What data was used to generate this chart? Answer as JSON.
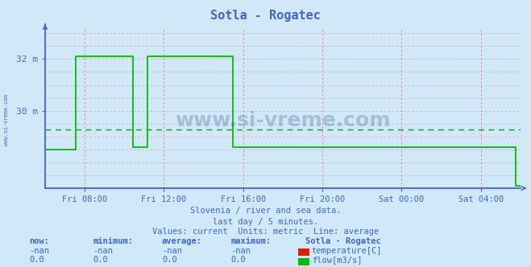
{
  "title": "Sotla - Rogatec",
  "bg_color": "#d0e8f8",
  "plot_bg_color": "#d0e8f8",
  "axis_color": "#4466bb",
  "grid_color_v": "#ee7777",
  "grid_color_h": "#ddaaaa",
  "line_color_flow": "#00bb00",
  "avg_line_color": "#00aa00",
  "ylim": [
    27.0,
    33.2
  ],
  "ytick_vals": [
    30.0,
    32.0
  ],
  "ytick_labels": [
    "30 m",
    "32 m"
  ],
  "xtick_labels": [
    "Fri 08:00",
    "Fri 12:00",
    "Fri 16:00",
    "Fri 20:00",
    "Sat 00:00",
    "Sat 04:00"
  ],
  "subtitle1": "Slovenia / river and sea data.",
  "subtitle2": "last day / 5 minutes.",
  "subtitle3": "Values: current  Units: metric  Line: average",
  "legend_title": "Sotla - Rogatec",
  "temp_label": "temperature[C]",
  "temp_color": "#dd2200",
  "flow_label": "flow[m3/s]",
  "flow_color": "#00bb00",
  "avg_value": 29.28,
  "watermark": "www.si-vreme.com",
  "sidebar_text": "www.si-vreme.com",
  "flow_x": [
    0.0,
    0.065,
    0.065,
    0.185,
    0.185,
    0.215,
    0.215,
    0.395,
    0.395,
    0.42,
    0.42,
    0.735,
    0.735,
    0.755,
    0.755,
    0.99,
    0.99,
    1.01
  ],
  "flow_y": [
    28.5,
    28.5,
    32.1,
    32.1,
    28.6,
    28.6,
    32.1,
    32.1,
    28.6,
    28.6,
    28.6,
    28.6,
    28.6,
    28.6,
    28.6,
    28.6,
    27.1,
    27.1
  ],
  "stat_headers": [
    "now:",
    "minimum:",
    "average:",
    "maximum:"
  ],
  "stat_rows": [
    [
      "-nan",
      "-nan",
      "-nan",
      "-nan"
    ],
    [
      "0.0",
      "0.0",
      "0.0",
      "0.0"
    ]
  ]
}
